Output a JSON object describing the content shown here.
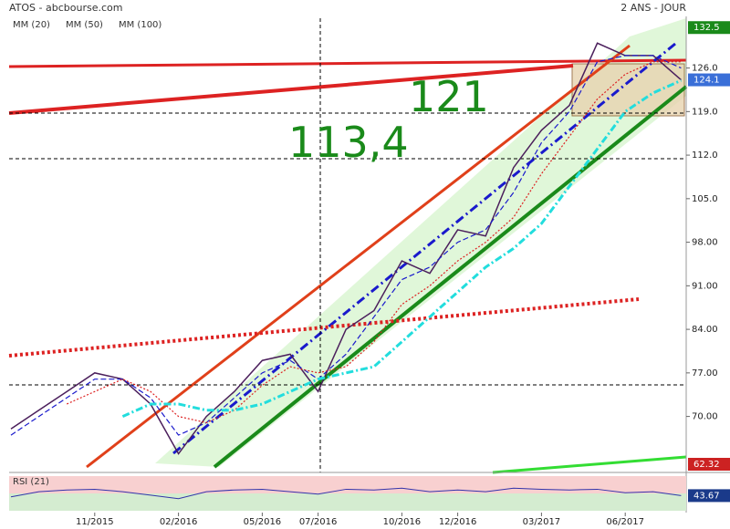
{
  "chart_data": {
    "type": "line",
    "title": "ATOS - abcbourse.com",
    "period": "2 ANS - JOUR",
    "annotations": [
      "121",
      "113,4"
    ],
    "categories": [
      null,
      null,
      null,
      "11/2015",
      null,
      null,
      "02/2016",
      null,
      null,
      "05/2016",
      null,
      "07/2016",
      null,
      null,
      "10/2016",
      null,
      "12/2016",
      null,
      null,
      "03/2017",
      null,
      null,
      "06/2017",
      null,
      null
    ],
    "price": {
      "color": "#4b1f5c",
      "values": [
        68,
        71,
        74,
        77,
        76,
        72,
        64,
        70,
        74,
        79,
        80,
        74,
        84,
        87,
        95,
        93,
        100,
        99,
        110,
        116,
        120,
        130,
        128,
        128,
        124.1
      ]
    },
    "series": [
      {
        "name": "MM (20)",
        "color": "#1a1acc",
        "values": [
          67,
          70,
          73,
          76,
          76,
          73,
          67,
          69,
          73,
          77,
          79,
          76,
          80,
          86,
          92,
          94,
          98,
          100,
          106,
          114,
          119,
          127,
          128,
          128,
          126
        ]
      },
      {
        "name": "MM (50)",
        "color": "#dd2222",
        "values": [
          null,
          null,
          72,
          74,
          76,
          74,
          70,
          69,
          71,
          75,
          78,
          77,
          78,
          82,
          88,
          91,
          95,
          98,
          102,
          109,
          115,
          121,
          125,
          127,
          127
        ]
      },
      {
        "name": "MM (100)",
        "color": "#22dddd",
        "values": [
          null,
          null,
          null,
          null,
          70,
          72,
          72,
          71,
          71,
          72,
          74,
          76,
          77,
          78,
          82,
          86,
          90,
          94,
          97,
          101,
          107,
          113,
          119,
          122,
          124
        ]
      }
    ],
    "ylim": [
      61,
      134
    ],
    "yticks": [
      {
        "value": 70,
        "label": "70.00"
      },
      {
        "value": 77,
        "label": "77.00"
      },
      {
        "value": 84,
        "label": "84.00"
      },
      {
        "value": 91,
        "label": "91.00"
      },
      {
        "value": 98,
        "label": "98.00"
      },
      {
        "value": 105,
        "label": "105.0"
      },
      {
        "value": 112,
        "label": "112.0"
      },
      {
        "value": 119,
        "label": "119.0"
      },
      {
        "value": 126,
        "label": "126.0"
      }
    ],
    "price_markers": [
      {
        "value": 132.5,
        "color": "#1a8a1a"
      },
      {
        "value": 124.1,
        "color": "#3a6fd8"
      },
      {
        "value": 62.32,
        "color": "#cc2222"
      }
    ],
    "rsi": {
      "label": "RSI (21)",
      "color": "#3333aa",
      "ylim": [
        0,
        100
      ],
      "values": [
        40,
        55,
        60,
        62,
        55,
        45,
        35,
        55,
        60,
        62,
        55,
        48,
        62,
        60,
        65,
        55,
        60,
        55,
        65,
        62,
        60,
        62,
        52,
        55,
        43.67
      ],
      "last": 43.67
    }
  }
}
